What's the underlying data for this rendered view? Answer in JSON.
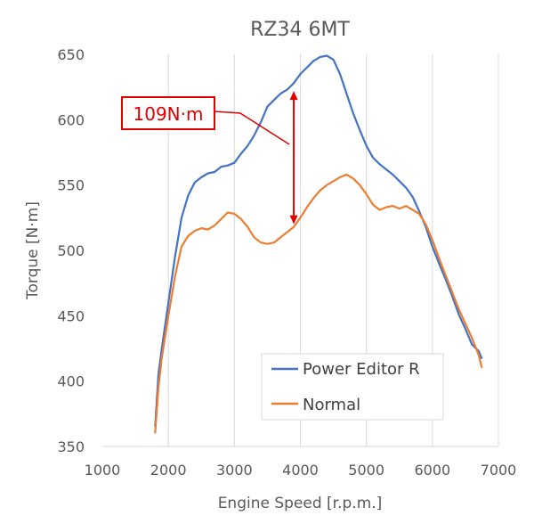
{
  "chart_data": {
    "type": "line",
    "title": "RZ34 6MT",
    "xlabel": "Engine Speed [r.p.m.]",
    "ylabel": "Torque [N·m]",
    "xlim": [
      1000,
      7000
    ],
    "ylim": [
      350,
      650
    ],
    "xticks": [
      1000,
      2000,
      3000,
      4000,
      5000,
      6000,
      7000
    ],
    "yticks": [
      350,
      400,
      450,
      500,
      550,
      600,
      650
    ],
    "grid": "vertical",
    "legend_position": "bottom-right",
    "series": [
      {
        "name": "Power Editor R",
        "color": "#4472c4",
        "points": [
          [
            1800,
            365
          ],
          [
            1850,
            405
          ],
          [
            1900,
            425
          ],
          [
            2000,
            460
          ],
          [
            2100,
            495
          ],
          [
            2200,
            525
          ],
          [
            2300,
            542
          ],
          [
            2400,
            552
          ],
          [
            2500,
            556
          ],
          [
            2600,
            559
          ],
          [
            2700,
            560
          ],
          [
            2800,
            564
          ],
          [
            2900,
            565
          ],
          [
            3000,
            567
          ],
          [
            3100,
            574
          ],
          [
            3200,
            580
          ],
          [
            3300,
            588
          ],
          [
            3400,
            598
          ],
          [
            3500,
            610
          ],
          [
            3600,
            615
          ],
          [
            3700,
            620
          ],
          [
            3800,
            623
          ],
          [
            3900,
            628
          ],
          [
            4000,
            635
          ],
          [
            4100,
            640
          ],
          [
            4200,
            645
          ],
          [
            4300,
            648
          ],
          [
            4400,
            649
          ],
          [
            4500,
            646
          ],
          [
            4600,
            635
          ],
          [
            4700,
            620
          ],
          [
            4800,
            605
          ],
          [
            4900,
            592
          ],
          [
            5000,
            580
          ],
          [
            5100,
            571
          ],
          [
            5200,
            566
          ],
          [
            5300,
            562
          ],
          [
            5400,
            558
          ],
          [
            5500,
            553
          ],
          [
            5600,
            548
          ],
          [
            5700,
            541
          ],
          [
            5800,
            530
          ],
          [
            5900,
            518
          ],
          [
            6000,
            503
          ],
          [
            6100,
            490
          ],
          [
            6200,
            478
          ],
          [
            6300,
            465
          ],
          [
            6400,
            451
          ],
          [
            6500,
            440
          ],
          [
            6600,
            428
          ],
          [
            6700,
            423
          ],
          [
            6750,
            417
          ]
        ]
      },
      {
        "name": "Normal",
        "color": "#ed7d31",
        "points": [
          [
            1800,
            360
          ],
          [
            1850,
            395
          ],
          [
            1900,
            418
          ],
          [
            2000,
            450
          ],
          [
            2100,
            480
          ],
          [
            2200,
            503
          ],
          [
            2300,
            511
          ],
          [
            2400,
            515
          ],
          [
            2500,
            517
          ],
          [
            2600,
            516
          ],
          [
            2700,
            519
          ],
          [
            2800,
            524
          ],
          [
            2900,
            529
          ],
          [
            3000,
            528
          ],
          [
            3100,
            524
          ],
          [
            3200,
            518
          ],
          [
            3300,
            510
          ],
          [
            3400,
            506
          ],
          [
            3500,
            505
          ],
          [
            3600,
            506
          ],
          [
            3700,
            510
          ],
          [
            3800,
            514
          ],
          [
            3900,
            518
          ],
          [
            4000,
            525
          ],
          [
            4100,
            533
          ],
          [
            4200,
            540
          ],
          [
            4300,
            546
          ],
          [
            4400,
            550
          ],
          [
            4500,
            553
          ],
          [
            4600,
            556
          ],
          [
            4700,
            558
          ],
          [
            4800,
            555
          ],
          [
            4900,
            550
          ],
          [
            5000,
            543
          ],
          [
            5100,
            535
          ],
          [
            5200,
            531
          ],
          [
            5300,
            533
          ],
          [
            5400,
            534
          ],
          [
            5500,
            532
          ],
          [
            5600,
            534
          ],
          [
            5700,
            531
          ],
          [
            5800,
            528
          ],
          [
            5900,
            520
          ],
          [
            6000,
            508
          ],
          [
            6100,
            494
          ],
          [
            6200,
            481
          ],
          [
            6300,
            468
          ],
          [
            6400,
            455
          ],
          [
            6500,
            444
          ],
          [
            6600,
            433
          ],
          [
            6700,
            420
          ],
          [
            6750,
            410
          ]
        ]
      }
    ],
    "annotation": {
      "text": "109N·m",
      "color": "#e00000",
      "arrow_x": 3900,
      "arrow_y_from": 622,
      "arrow_y_to": 520
    }
  }
}
